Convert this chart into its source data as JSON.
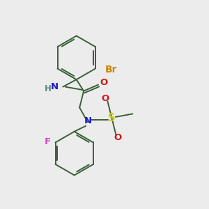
{
  "background_color": "#ececec",
  "bond_color": "#3a5f3a",
  "atom_colors": {
    "N": "#1a1acc",
    "O": "#cc1a1a",
    "S": "#cccc00",
    "Br": "#cc8800",
    "F": "#dd44cc",
    "H": "#5a8888",
    "C": "#3a5f3a"
  },
  "bond_lw": 1.4,
  "font_size": 9.5,
  "figsize": [
    3.0,
    3.0
  ],
  "dpi": 100
}
